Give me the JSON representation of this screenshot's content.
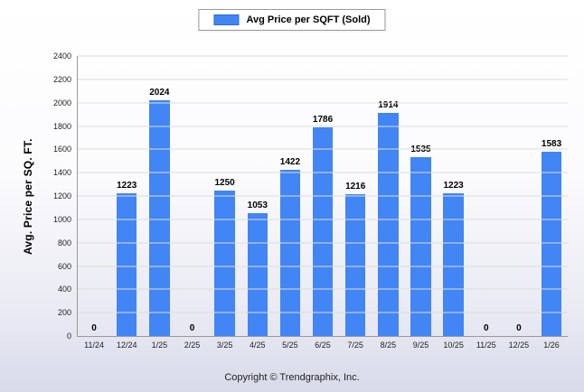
{
  "chart_data": {
    "type": "bar",
    "title": "",
    "legend": "Avg Price per SQFT (Sold)",
    "ylabel": "Avg. Price per SQ. FT.",
    "xlabel": "",
    "categories": [
      "11/24",
      "12/24",
      "1/25",
      "2/25",
      "3/25",
      "4/25",
      "5/25",
      "6/25",
      "7/25",
      "8/25",
      "9/25",
      "10/25",
      "11/25",
      "12/25",
      "1/26"
    ],
    "values": [
      0,
      1223,
      2024,
      0,
      1250,
      1053,
      1422,
      1786,
      1216,
      1914,
      1535,
      1223,
      0,
      0,
      1583
    ],
    "ylim": [
      0,
      2400
    ],
    "ytick_step": 200,
    "grid": true,
    "legend_position": "top",
    "bar_color": "#4285f4",
    "bar_border_color": "#2b6fd6",
    "footer": "Copyright © Trendgraphix, Inc."
  }
}
